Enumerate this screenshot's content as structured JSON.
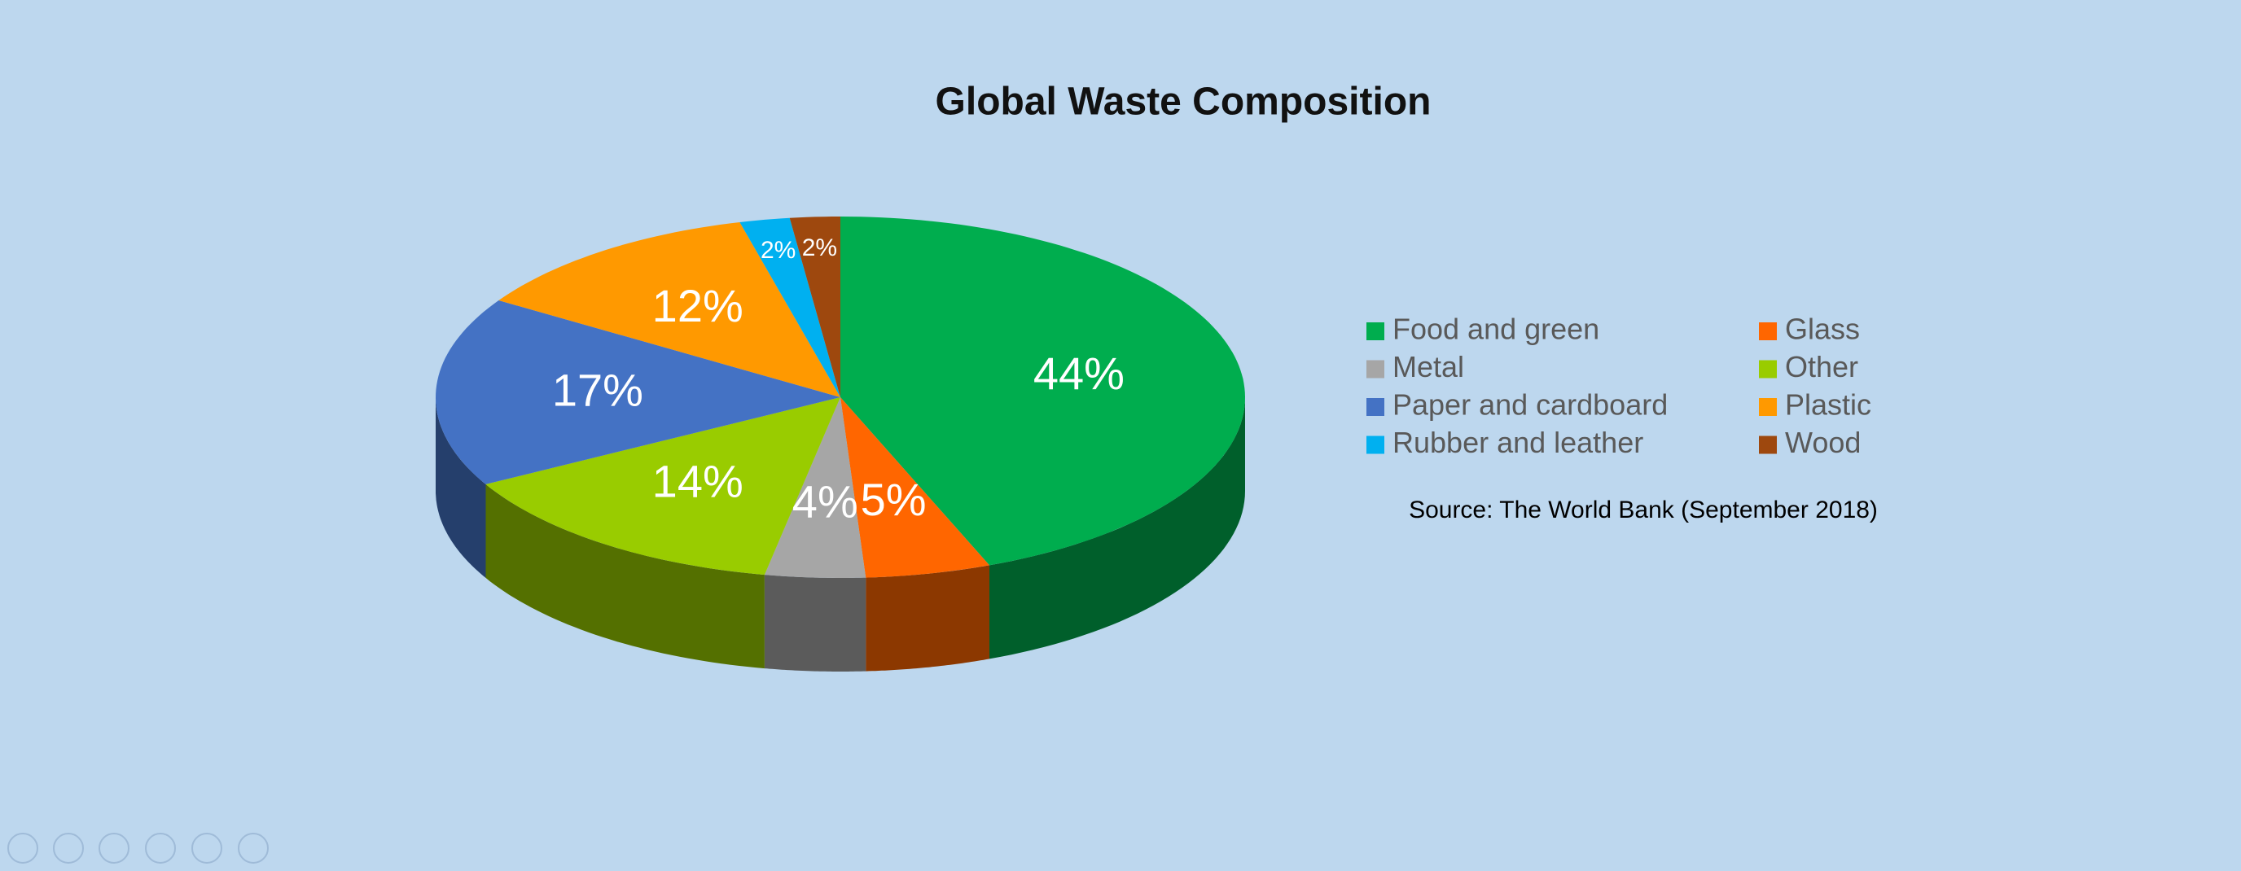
{
  "chart_data": {
    "type": "pie",
    "title": "Global Waste Composition",
    "source": "Source: The World Bank (September 2018)",
    "categories": [
      "Food and green",
      "Glass",
      "Metal",
      "Other",
      "Paper and cardboard",
      "Plastic",
      "Rubber and leather",
      "Wood"
    ],
    "values": [
      44,
      5,
      4,
      14,
      17,
      12,
      2,
      2
    ],
    "value_labels": [
      "44%",
      "5%",
      "4%",
      "14%",
      "17%",
      "12%",
      "2%",
      "2%"
    ],
    "colors": [
      "#00ad4e",
      "#ff6600",
      "#a6a6a6",
      "#99cc00",
      "#4472c4",
      "#ff9900",
      "#00b0f0",
      "#9e480e"
    ],
    "legend": "right"
  }
}
